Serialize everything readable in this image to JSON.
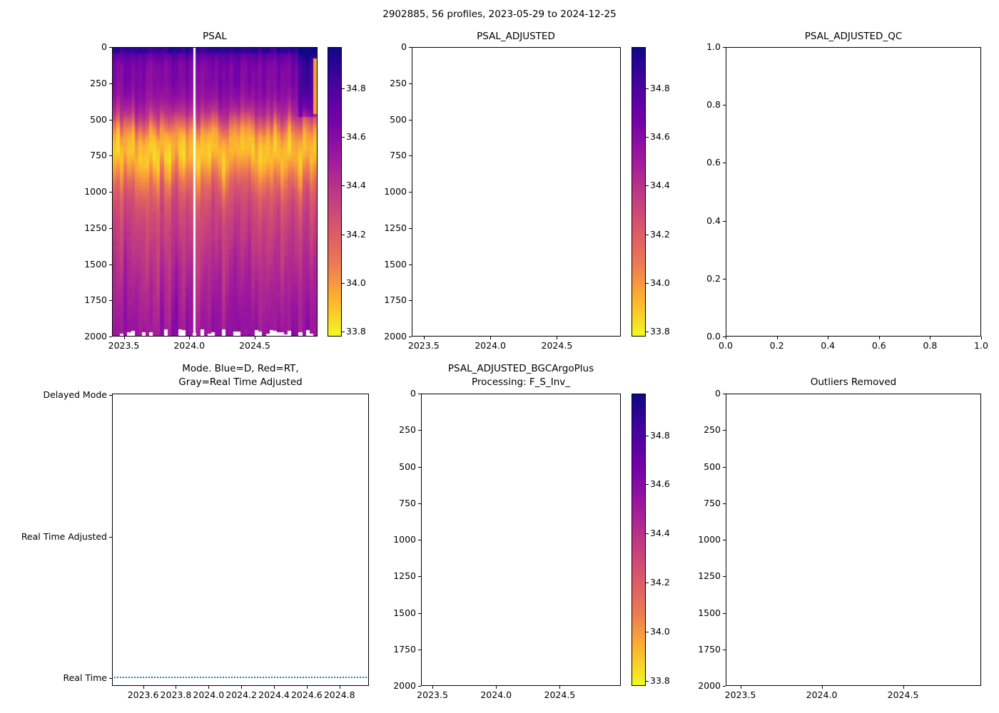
{
  "figure": {
    "title": "2902885, 56 profiles, 2023-05-29 to 2024-12-25",
    "background_color": "#ffffff",
    "colormap_stops_top_to_bottom": [
      "#0d0887",
      "#46039f",
      "#7201a8",
      "#9c179e",
      "#bd3786",
      "#d8576b",
      "#ed7953",
      "#fdb42f",
      "#f0f921"
    ],
    "mode_line_color": "#1f77b4"
  },
  "chart_data": [
    {
      "id": "psal",
      "type": "heatmap",
      "title": "PSAL",
      "x_range": [
        2023.41,
        2024.98
      ],
      "x_ticks": [
        {
          "v": 2023.5,
          "label": "2023.5"
        },
        {
          "v": 2024.0,
          "label": "2024.0"
        },
        {
          "v": 2024.5,
          "label": "2024.5"
        }
      ],
      "y_range": [
        0,
        2000
      ],
      "y_ticks": [
        {
          "v": 0,
          "label": "0"
        },
        {
          "v": 250,
          "label": "250"
        },
        {
          "v": 500,
          "label": "500"
        },
        {
          "v": 750,
          "label": "750"
        },
        {
          "v": 1000,
          "label": "1000"
        },
        {
          "v": 1250,
          "label": "1250"
        },
        {
          "v": 1500,
          "label": "1500"
        },
        {
          "v": 1750,
          "label": "1750"
        },
        {
          "v": 2000,
          "label": "2000"
        }
      ],
      "colorbar": {
        "vmin": 33.78,
        "vmax": 34.97,
        "ticks": [
          {
            "v": 34.8,
            "label": "34.8"
          },
          {
            "v": 34.6,
            "label": "34.6"
          },
          {
            "v": 34.4,
            "label": "34.4"
          },
          {
            "v": 34.2,
            "label": "34.2"
          },
          {
            "v": 34.0,
            "label": "34.0"
          },
          {
            "v": 33.8,
            "label": "33.8"
          }
        ]
      },
      "n_profiles": 56,
      "missing_profile_time": 2024.04,
      "mean_profile": {
        "depths": [
          0,
          30,
          60,
          100,
          150,
          250,
          350,
          450,
          500,
          550,
          600,
          650,
          700,
          750,
          800,
          900,
          1000,
          1100,
          1200,
          1400,
          1600,
          1800,
          2000
        ],
        "salinity": [
          34.88,
          34.8,
          34.72,
          34.66,
          34.63,
          34.62,
          34.56,
          34.42,
          34.28,
          34.12,
          34.0,
          33.94,
          33.91,
          33.9,
          33.94,
          34.06,
          34.2,
          34.27,
          34.32,
          34.38,
          34.45,
          34.5,
          34.55
        ]
      }
    },
    {
      "id": "psal_adjusted",
      "type": "heatmap",
      "title": "PSAL_ADJUSTED",
      "empty": true,
      "x_range": [
        2023.41,
        2024.98
      ],
      "x_ticks": [
        {
          "v": 2023.5,
          "label": "2023.5"
        },
        {
          "v": 2024.0,
          "label": "2024.0"
        },
        {
          "v": 2024.5,
          "label": "2024.5"
        }
      ],
      "y_range": [
        0,
        2000
      ],
      "y_ticks": [
        {
          "v": 0,
          "label": "0"
        },
        {
          "v": 250,
          "label": "250"
        },
        {
          "v": 500,
          "label": "500"
        },
        {
          "v": 750,
          "label": "750"
        },
        {
          "v": 1000,
          "label": "1000"
        },
        {
          "v": 1250,
          "label": "1250"
        },
        {
          "v": 1500,
          "label": "1500"
        },
        {
          "v": 1750,
          "label": "1750"
        },
        {
          "v": 2000,
          "label": "2000"
        }
      ],
      "colorbar": {
        "vmin": 33.78,
        "vmax": 34.97,
        "ticks": [
          {
            "v": 34.8,
            "label": "34.8"
          },
          {
            "v": 34.6,
            "label": "34.6"
          },
          {
            "v": 34.4,
            "label": "34.4"
          },
          {
            "v": 34.2,
            "label": "34.2"
          },
          {
            "v": 34.0,
            "label": "34.0"
          },
          {
            "v": 33.8,
            "label": "33.8"
          }
        ]
      }
    },
    {
      "id": "psal_adjusted_qc",
      "type": "scatter",
      "title": "PSAL_ADJUSTED_QC",
      "empty": true,
      "x_range": [
        0,
        1
      ],
      "x_ticks": [
        {
          "v": 0.0,
          "label": "0.0"
        },
        {
          "v": 0.2,
          "label": "0.2"
        },
        {
          "v": 0.4,
          "label": "0.4"
        },
        {
          "v": 0.6,
          "label": "0.6"
        },
        {
          "v": 0.8,
          "label": "0.8"
        },
        {
          "v": 1.0,
          "label": "1.0"
        }
      ],
      "y_range": [
        1,
        0
      ],
      "y_ticks": [
        {
          "v": 1.0,
          "label": "1.0"
        },
        {
          "v": 0.8,
          "label": "0.8"
        },
        {
          "v": 0.6,
          "label": "0.6"
        },
        {
          "v": 0.4,
          "label": "0.4"
        },
        {
          "v": 0.2,
          "label": "0.2"
        },
        {
          "v": 0.0,
          "label": "0.0"
        }
      ]
    },
    {
      "id": "mode",
      "type": "line",
      "title": "Mode. Blue=D, Red=RT,\nGray=Real Time Adjusted",
      "x_range": [
        2023.41,
        2024.98
      ],
      "x_ticks": [
        {
          "v": 2023.6,
          "label": "2023.6"
        },
        {
          "v": 2023.8,
          "label": "2023.8"
        },
        {
          "v": 2024.0,
          "label": "2024.0"
        },
        {
          "v": 2024.2,
          "label": "2024.2"
        },
        {
          "v": 2024.4,
          "label": "2024.4"
        },
        {
          "v": 2024.6,
          "label": "2024.6"
        },
        {
          "v": 2024.8,
          "label": "2024.8"
        }
      ],
      "y_categories": [
        "Delayed Mode",
        "Real Time Adjusted",
        "Real Time"
      ],
      "series": [
        {
          "name": "mode",
          "color": "#1f77b4",
          "linestyle": "dotted",
          "value": "Real Time"
        }
      ]
    },
    {
      "id": "psal_adjusted_bgc",
      "type": "heatmap",
      "title": "PSAL_ADJUSTED_BGCArgoPlus\nProcessing: F_S_Inv_",
      "empty": true,
      "x_range": [
        2023.41,
        2024.98
      ],
      "x_ticks": [
        {
          "v": 2023.5,
          "label": "2023.5"
        },
        {
          "v": 2024.0,
          "label": "2024.0"
        },
        {
          "v": 2024.5,
          "label": "2024.5"
        }
      ],
      "y_range": [
        0,
        2000
      ],
      "y_ticks": [
        {
          "v": 0,
          "label": "0"
        },
        {
          "v": 250,
          "label": "250"
        },
        {
          "v": 500,
          "label": "500"
        },
        {
          "v": 750,
          "label": "750"
        },
        {
          "v": 1000,
          "label": "1000"
        },
        {
          "v": 1250,
          "label": "1250"
        },
        {
          "v": 1500,
          "label": "1500"
        },
        {
          "v": 1750,
          "label": "1750"
        },
        {
          "v": 2000,
          "label": "2000"
        }
      ],
      "colorbar": {
        "vmin": 33.78,
        "vmax": 34.97,
        "ticks": [
          {
            "v": 34.8,
            "label": "34.8"
          },
          {
            "v": 34.6,
            "label": "34.6"
          },
          {
            "v": 34.4,
            "label": "34.4"
          },
          {
            "v": 34.2,
            "label": "34.2"
          },
          {
            "v": 34.0,
            "label": "34.0"
          },
          {
            "v": 33.8,
            "label": "33.8"
          }
        ]
      }
    },
    {
      "id": "outliers_removed",
      "type": "scatter",
      "title": "Outliers Removed",
      "empty": true,
      "x_range": [
        2023.41,
        2024.98
      ],
      "x_ticks": [
        {
          "v": 2023.5,
          "label": "2023.5"
        },
        {
          "v": 2024.0,
          "label": "2024.0"
        },
        {
          "v": 2024.5,
          "label": "2024.5"
        }
      ],
      "y_range": [
        0,
        2000
      ],
      "y_ticks": [
        {
          "v": 0,
          "label": "0"
        },
        {
          "v": 250,
          "label": "250"
        },
        {
          "v": 500,
          "label": "500"
        },
        {
          "v": 750,
          "label": "750"
        },
        {
          "v": 1000,
          "label": "1000"
        },
        {
          "v": 1250,
          "label": "1250"
        },
        {
          "v": 1500,
          "label": "1500"
        },
        {
          "v": 1750,
          "label": "1750"
        },
        {
          "v": 2000,
          "label": "2000"
        }
      ]
    }
  ]
}
